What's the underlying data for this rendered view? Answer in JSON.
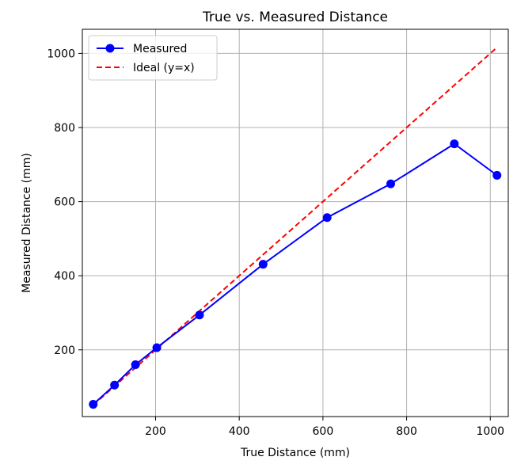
{
  "chart_data": {
    "type": "line",
    "title": "True vs. Measured Distance",
    "xlabel": "True Distance (mm)",
    "ylabel": "Measured Distance (mm)",
    "xlim": [
      25,
      1043
    ],
    "ylim": [
      20,
      1065
    ],
    "xticks": [
      200,
      400,
      600,
      800,
      1000
    ],
    "yticks": [
      200,
      400,
      600,
      800,
      1000
    ],
    "grid": true,
    "legend_position": "top-left",
    "series": [
      {
        "name": "Measured",
        "color": "#0000ff",
        "style": "solid",
        "marker": "circle",
        "x": [
          51,
          102,
          152,
          203,
          305,
          457,
          610,
          762,
          914,
          1016
        ],
        "y": [
          53,
          105,
          160,
          206,
          294,
          431,
          557,
          648,
          756,
          671
        ]
      },
      {
        "name": "Ideal (y=x)",
        "color": "#ff0000",
        "style": "dashed",
        "marker": "none",
        "x": [
          51,
          1016
        ],
        "y": [
          51,
          1016
        ]
      }
    ]
  }
}
